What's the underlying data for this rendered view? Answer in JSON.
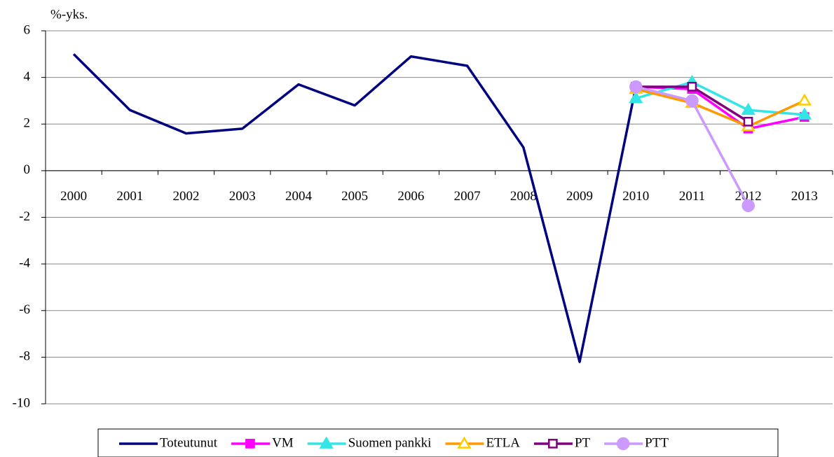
{
  "chart_data": {
    "type": "line",
    "y_label": "%-yks.",
    "categories": [
      "2000",
      "2001",
      "2002",
      "2003",
      "2004",
      "2005",
      "2006",
      "2007",
      "2008",
      "2009",
      "2010",
      "2011",
      "2012",
      "2013"
    ],
    "ylim": [
      -10,
      6
    ],
    "yticks": [
      -10,
      -8,
      -6,
      -4,
      -2,
      0,
      2,
      4,
      6
    ],
    "grid": true,
    "legend": "bottom",
    "series": [
      {
        "name": "Toteutunut",
        "color": "#000080",
        "marker": "none",
        "values": [
          5.0,
          2.6,
          1.6,
          1.8,
          3.7,
          2.8,
          4.9,
          4.5,
          1.0,
          -8.2,
          3.6,
          null,
          null,
          null
        ]
      },
      {
        "name": "VM",
        "color": "#ff00ff",
        "marker": "square",
        "values": [
          null,
          null,
          null,
          null,
          null,
          null,
          null,
          null,
          null,
          null,
          3.6,
          3.5,
          1.8,
          2.3
        ]
      },
      {
        "name": "Suomen pankki",
        "color": "#33e6e6",
        "marker": "triangle",
        "values": [
          null,
          null,
          null,
          null,
          null,
          null,
          null,
          null,
          null,
          null,
          3.1,
          3.8,
          2.6,
          2.4
        ]
      },
      {
        "name": "ETLA",
        "color": "#ff9900",
        "marker": "open-triangle",
        "values": [
          null,
          null,
          null,
          null,
          null,
          null,
          null,
          null,
          null,
          null,
          3.5,
          2.9,
          1.9,
          3.0
        ]
      },
      {
        "name": "PT",
        "color": "#800080",
        "marker": "open-square",
        "values": [
          null,
          null,
          null,
          null,
          null,
          null,
          null,
          null,
          null,
          null,
          3.6,
          3.6,
          2.1,
          null
        ]
      },
      {
        "name": "PTT",
        "color": "#cc99ff",
        "marker": "circle",
        "values": [
          null,
          null,
          null,
          null,
          null,
          null,
          null,
          null,
          null,
          null,
          3.6,
          3.0,
          -1.5,
          null
        ]
      }
    ]
  }
}
